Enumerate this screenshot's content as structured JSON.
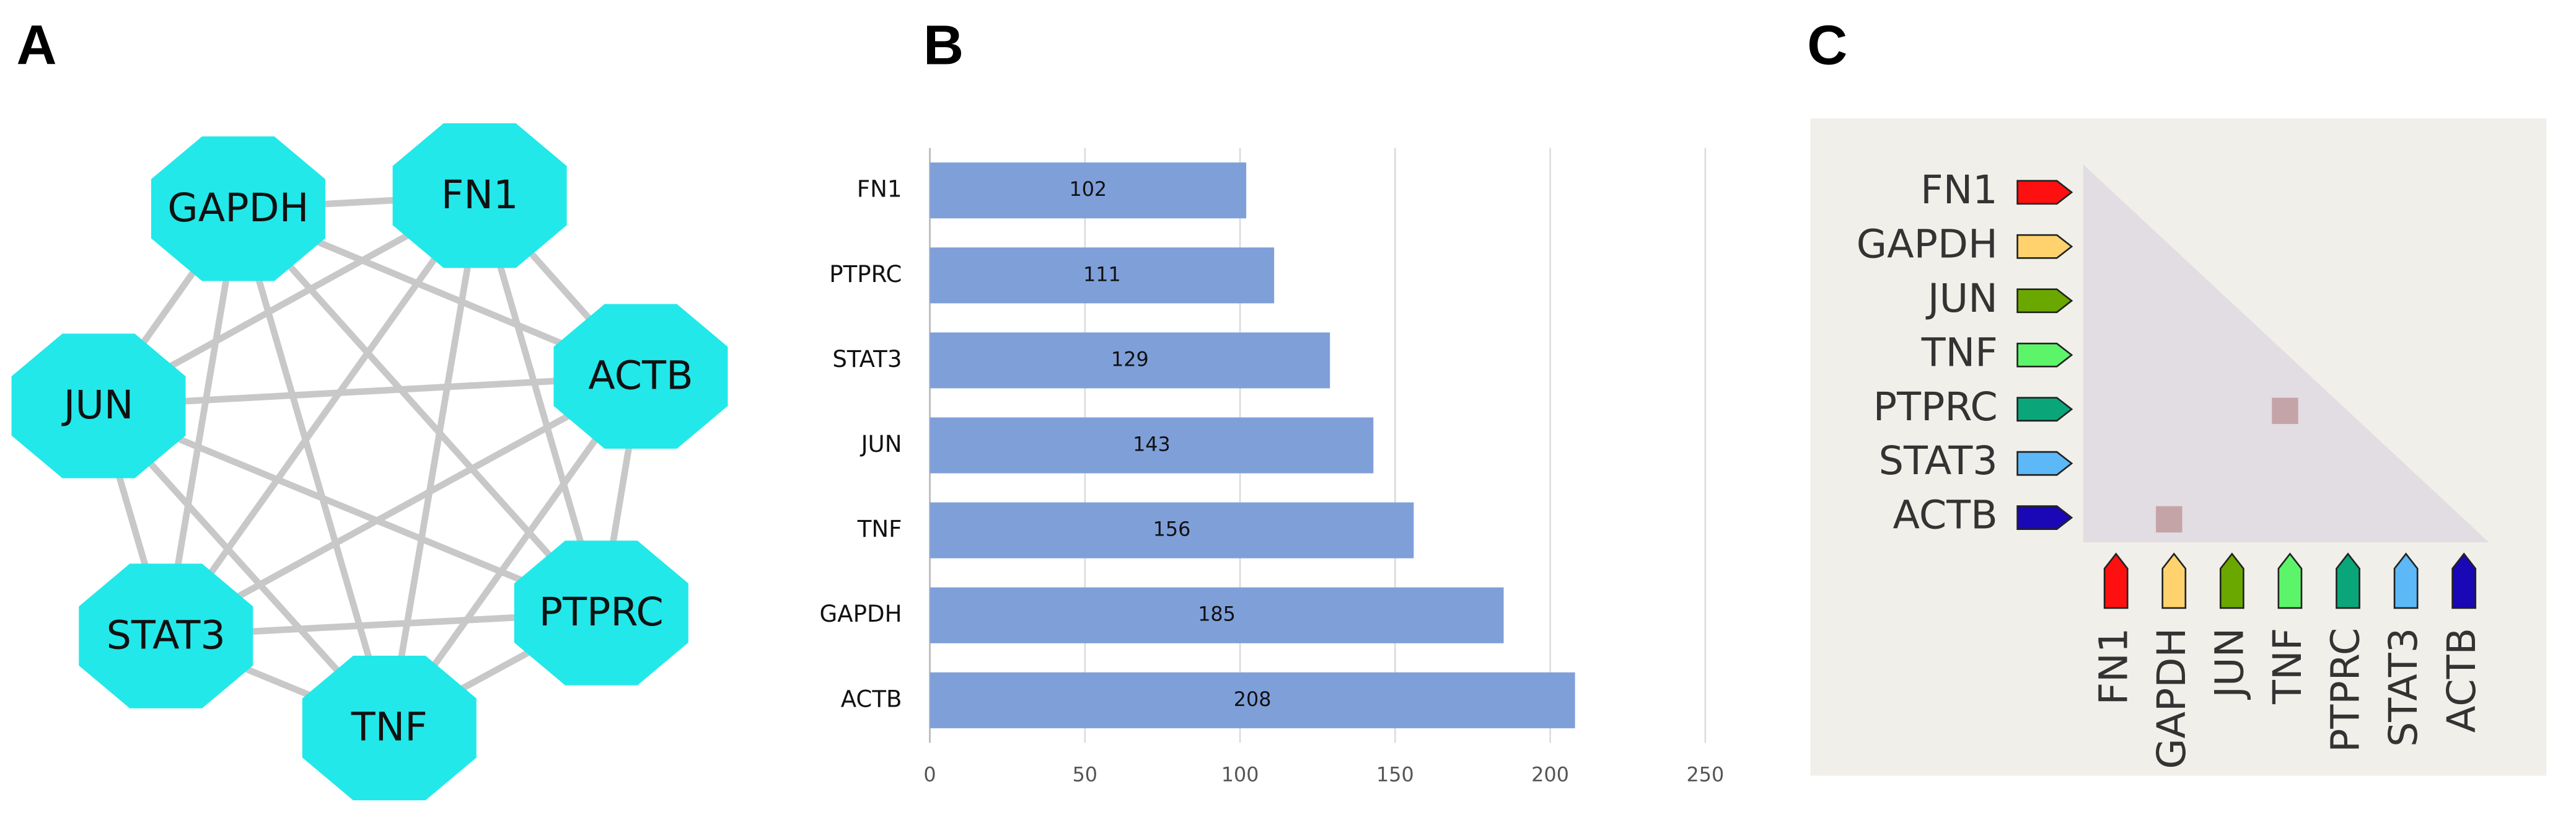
{
  "panel_labels": [
    "A",
    "B",
    "C"
  ],
  "network": {
    "nodes": [
      "GAPDH",
      "FN1",
      "ACTB",
      "JUN",
      "PTPRC",
      "STAT3",
      "TNF"
    ],
    "color": "#22e8ea"
  },
  "chart_data": {
    "type": "bar",
    "orientation": "horizontal",
    "categories": [
      "FN1",
      "PTPRC",
      "STAT3",
      "JUN",
      "TNF",
      "GAPDH",
      "ACTB"
    ],
    "values": [
      102,
      111,
      129,
      143,
      156,
      185,
      208
    ],
    "color": "#7f9fd9",
    "xlim": [
      0,
      250
    ],
    "xticks": [
      0,
      50,
      100,
      150,
      200,
      250
    ],
    "grid": true
  },
  "matrix": {
    "labels": [
      "FN1",
      "GAPDH",
      "JUN",
      "TNF",
      "PTPRC",
      "STAT3",
      "ACTB"
    ],
    "colors": [
      "#ff1010",
      "#ffd26e",
      "#6aa800",
      "#5cf56a",
      "#0aa67a",
      "#5cb8f7",
      "#1a07b5"
    ],
    "marked_cells": [
      [
        4,
        3
      ],
      [
        6,
        1
      ]
    ],
    "mark_color": "#c5a4a8"
  }
}
